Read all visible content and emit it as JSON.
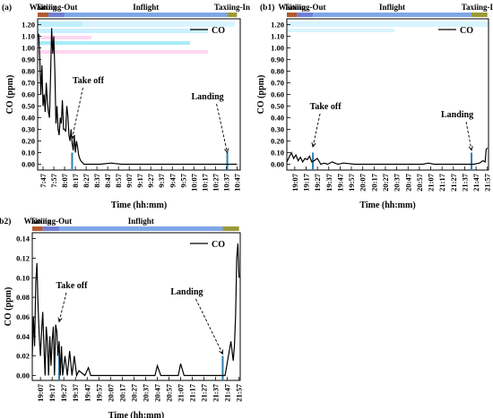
{
  "chart_data": [
    {
      "id": "a",
      "type": "line",
      "panel_label": "(a)",
      "phases": [
        {
          "label": "Waiting",
          "x_start": "7:42",
          "x_end": "7:52",
          "color": "#b25a2e"
        },
        {
          "label": "Taxiing-Out",
          "x_start": "7:52",
          "x_end": "8:07",
          "color": "#6f7fd6"
        },
        {
          "label": "Inflight",
          "x_start": "8:07",
          "x_end": "10:38",
          "color": "#7fa7e6"
        },
        {
          "label": "Taxiing-In",
          "x_start": "10:38",
          "x_end": "10:47",
          "color": "#9a9a36"
        }
      ],
      "phase_labels_shown": [
        "Waiting",
        "Taxiing-Out",
        "Inflight",
        "Taxiing-In"
      ],
      "xlabel": "Time (hh:mm)",
      "ylabel": "CO (ppm)",
      "x_ticks": [
        "7:47",
        "7:57",
        "8:07",
        "8:17",
        "8:27",
        "8:37",
        "8:47",
        "8:57",
        "9:07",
        "9:17",
        "9:27",
        "9:37",
        "9:47",
        "9:57",
        "10:07",
        "10:17",
        "10:27",
        "10:37",
        "10:47"
      ],
      "xlim": [
        "7:42",
        "10:50"
      ],
      "y_ticks": [
        "0.00",
        "0.10",
        "0.20",
        "0.30",
        "0.40",
        "0.50",
        "0.60",
        "0.70",
        "0.80",
        "0.90",
        "1.00",
        "1.10",
        "1.20"
      ],
      "ylim": [
        -0.05,
        1.25
      ],
      "legend": {
        "label": "CO",
        "placement": "top-right"
      },
      "series": [
        {
          "color": "#000000",
          "x": [
            "7:42",
            "7:43",
            "7:44",
            "7:45",
            "7:46",
            "7:47",
            "7:48",
            "7:49",
            "7:50",
            "7:51",
            "7:52",
            "7:53",
            "7:54",
            "7:55",
            "7:56",
            "7:57",
            "7:58",
            "7:59",
            "8:00",
            "8:01",
            "8:02",
            "8:03",
            "8:04",
            "8:05",
            "8:06",
            "8:07",
            "8:08",
            "8:09",
            "8:10",
            "8:11",
            "8:12",
            "8:13",
            "8:14",
            "8:15",
            "8:16",
            "8:17",
            "8:18",
            "8:19",
            "8:20",
            "8:21",
            "8:22",
            "8:23",
            "8:25",
            "8:30",
            "8:40",
            "8:50",
            "9:00",
            "10:00",
            "10:30",
            "10:47"
          ],
          "values": [
            1.1,
            1.12,
            0.9,
            0.6,
            0.85,
            0.5,
            0.6,
            0.45,
            0.7,
            0.55,
            0.45,
            0.4,
            0.75,
            1.17,
            0.95,
            1.1,
            0.8,
            0.35,
            0.5,
            0.3,
            0.25,
            0.4,
            0.35,
            0.55,
            0.3,
            0.3,
            0.28,
            0.5,
            0.42,
            0.25,
            0.2,
            0.3,
            0.18,
            0.12,
            0.25,
            0.1,
            0.2,
            0.15,
            0.08,
            0.05,
            0.03,
            0.02,
            0.0,
            0.0,
            0.0,
            0.01,
            0.0,
            0.0,
            0.0,
            0.0
          ]
        }
      ],
      "annotations": [
        {
          "text": "Take off",
          "x": "8:14"
        },
        {
          "text": "Landing",
          "x": "10:38"
        }
      ],
      "grid": false
    },
    {
      "id": "b1",
      "type": "line",
      "panel_label": "(b1)",
      "phases": [
        {
          "label": "Waiting",
          "x_start": "19:00",
          "x_end": "19:09",
          "color": "#b25a2e"
        },
        {
          "label": "Taxiing-Out",
          "x_start": "19:09",
          "x_end": "19:23",
          "color": "#6f7fd6"
        },
        {
          "label": "Inflight",
          "x_start": "19:23",
          "x_end": "21:43",
          "color": "#7fa7e6"
        },
        {
          "label": "Taxiing-In",
          "x_start": "21:43",
          "x_end": "21:57",
          "color": "#9a9a36"
        }
      ],
      "phase_labels_shown": [
        "Waiting",
        "Taxiing-Out",
        "Inflight",
        "Taxiing-In"
      ],
      "xlabel": "Time (hh:mm)",
      "ylabel": "CO (ppm)",
      "x_ticks": [
        "19:07",
        "19:17",
        "19:27",
        "19:37",
        "19:47",
        "19:57",
        "20:07",
        "20:17",
        "20:27",
        "20:37",
        "20:47",
        "20:57",
        "21:07",
        "21:17",
        "21:27",
        "21:37",
        "21:47",
        "21:57"
      ],
      "xlim": [
        "19:00",
        "21:58"
      ],
      "y_ticks": [
        "0.00",
        "0.10",
        "0.20",
        "0.30",
        "0.40",
        "0.50",
        "0.60",
        "0.70",
        "0.80",
        "0.90",
        "1.00",
        "1.10",
        "1.20"
      ],
      "ylim": [
        -0.05,
        1.25
      ],
      "legend": {
        "label": "CO",
        "placement": "top-right"
      },
      "series": [
        {
          "color": "#000000",
          "x": [
            "19:00",
            "19:02",
            "19:04",
            "19:06",
            "19:08",
            "19:10",
            "19:12",
            "19:14",
            "19:16",
            "19:18",
            "19:20",
            "19:22",
            "19:24",
            "19:27",
            "19:30",
            "19:33",
            "19:36",
            "19:40",
            "19:45",
            "19:50",
            "20:00",
            "20:10",
            "20:30",
            "20:50",
            "21:00",
            "21:05",
            "21:10",
            "21:30",
            "21:45",
            "21:50",
            "21:53",
            "21:55",
            "21:56",
            "21:57"
          ],
          "values": [
            0.02,
            0.06,
            0.1,
            0.05,
            0.08,
            0.03,
            0.06,
            0.02,
            0.05,
            0.04,
            0.07,
            0.02,
            0.03,
            0.05,
            0.0,
            0.01,
            0.0,
            0.02,
            0.0,
            0.01,
            0.0,
            0.0,
            0.0,
            0.0,
            0.0,
            0.01,
            0.0,
            0.0,
            0.0,
            0.01,
            0.03,
            0.02,
            0.13,
            0.14
          ]
        }
      ],
      "annotations": [
        {
          "text": "Take off",
          "x": "19:23"
        },
        {
          "text": "Landing",
          "x": "21:43"
        }
      ],
      "grid": false
    },
    {
      "id": "b2",
      "type": "line",
      "panel_label": "(b2)",
      "phases": [
        {
          "label": "Waiting",
          "x_start": "19:00",
          "x_end": "19:09",
          "color": "#b25a2e"
        },
        {
          "label": "Taxiing-Out",
          "x_start": "19:09",
          "x_end": "19:23",
          "color": "#6f7fd6"
        },
        {
          "label": "Inflight",
          "x_start": "19:23",
          "x_end": "21:43",
          "color": "#7fa7e6"
        },
        {
          "label": "",
          "x_start": "21:43",
          "x_end": "21:57",
          "color": "#9a9a36"
        }
      ],
      "phase_labels_shown": [
        "Waiting",
        "Taxiing-Out",
        "Inflight"
      ],
      "xlabel": "Time (hh:mm)",
      "ylabel": "CO (ppm)",
      "x_ticks": [
        "19:07",
        "19:17",
        "19:27",
        "19:37",
        "19:47",
        "19:57",
        "20:07",
        "20:17",
        "20:27",
        "20:37",
        "20:47",
        "20:57",
        "21:07",
        "21:17",
        "21:27",
        "21:37",
        "21:47",
        "21:57"
      ],
      "xlim": [
        "19:00",
        "21:58"
      ],
      "y_ticks": [
        "0.00",
        "0.02",
        "0.04",
        "0.06",
        "0.08",
        "0.10",
        "0.12",
        "0.14"
      ],
      "ylim": [
        -0.005,
        0.146
      ],
      "legend": {
        "label": "CO",
        "placement": "top-right"
      },
      "series": [
        {
          "color": "#000000",
          "x": [
            "19:00",
            "19:01",
            "19:02",
            "19:03",
            "19:04",
            "19:05",
            "19:06",
            "19:07",
            "19:08",
            "19:09",
            "19:10",
            "19:11",
            "19:12",
            "19:13",
            "19:14",
            "19:15",
            "19:16",
            "19:17",
            "19:18",
            "19:19",
            "19:20",
            "19:21",
            "19:22",
            "19:23",
            "19:24",
            "19:25",
            "19:26",
            "19:28",
            "19:30",
            "19:32",
            "19:34",
            "19:36",
            "19:38",
            "19:40",
            "19:45",
            "19:48",
            "19:50",
            "19:55",
            "20:05",
            "20:45",
            "20:47",
            "20:50",
            "21:05",
            "21:07",
            "21:10",
            "21:45",
            "21:50",
            "21:52",
            "21:53",
            "21:54",
            "21:55",
            "21:56",
            "21:57"
          ],
          "values": [
            0.02,
            0.06,
            0.03,
            0.095,
            0.115,
            0.07,
            0.04,
            0.02,
            0.045,
            0.065,
            0.03,
            0.0,
            0.05,
            0.035,
            0.0,
            0.04,
            0.01,
            0.035,
            0.05,
            0.0,
            0.052,
            0.045,
            0.02,
            0.035,
            0.0,
            0.03,
            0.0,
            0.02,
            0.0,
            0.025,
            0.0,
            0.02,
            0.0,
            0.005,
            0.0,
            0.008,
            0.0,
            0.0,
            0.0,
            0.0,
            0.01,
            0.0,
            0.0,
            0.012,
            0.0,
            0.0,
            0.035,
            0.015,
            0.03,
            0.06,
            0.12,
            0.135,
            0.1
          ]
        }
      ],
      "annotations": [
        {
          "text": "Take off",
          "x": "19:23"
        },
        {
          "text": "Landing",
          "x": "21:43"
        }
      ],
      "grid": false
    }
  ]
}
